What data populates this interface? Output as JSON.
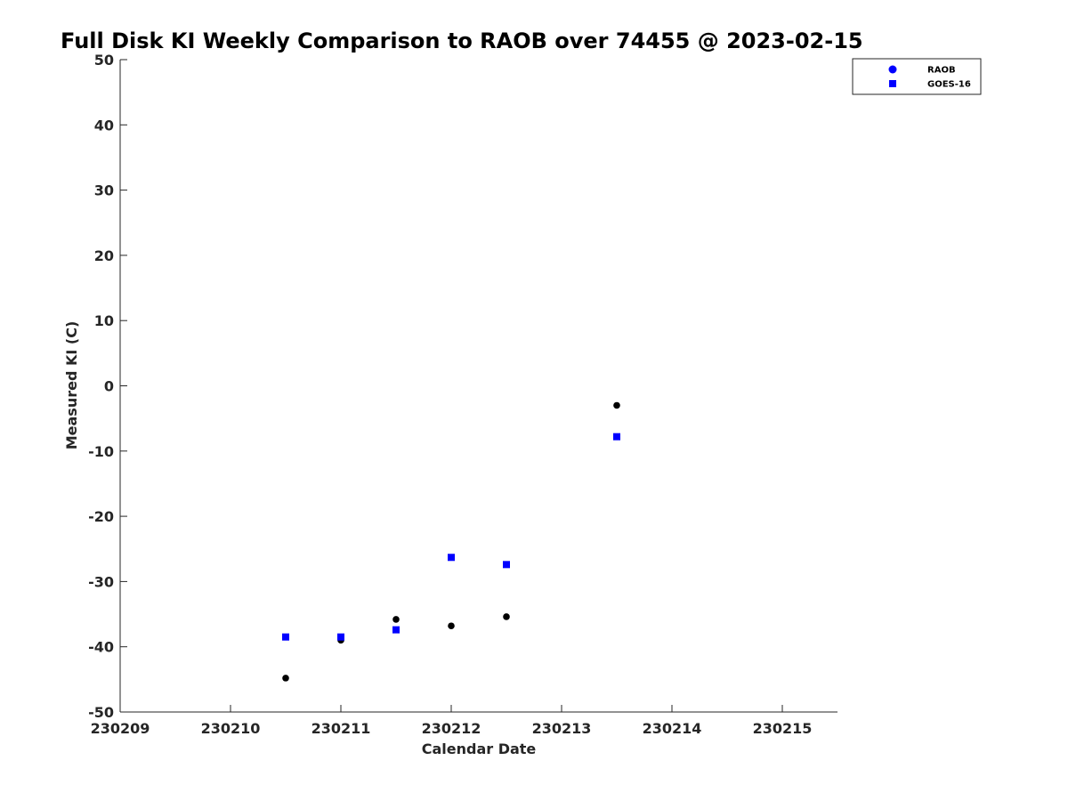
{
  "chart_data": {
    "type": "scatter",
    "title": "Full Disk KI Weekly Comparison to RAOB over 74455 @ 2023-02-15",
    "xlabel": "Calendar Date",
    "ylabel": "Measured KI (C)",
    "xlim": [
      230209,
      230215.5
    ],
    "ylim": [
      -50,
      50
    ],
    "xticks": [
      230209,
      230210,
      230211,
      230212,
      230213,
      230214,
      230215
    ],
    "xtick_labels": [
      "230209",
      "230210",
      "230211",
      "230212",
      "230213",
      "230214",
      "230215"
    ],
    "yticks": [
      50,
      40,
      30,
      20,
      10,
      0,
      -10,
      -20,
      -30,
      -40,
      -50
    ],
    "ytick_labels": [
      "50",
      "40",
      "30",
      "20",
      "10",
      "0",
      "-10",
      "-20",
      "-30",
      "-40",
      "-50"
    ],
    "grid": false,
    "legend_position": "top-right",
    "series": [
      {
        "name": "RAOB",
        "marker": "circle",
        "color": "#000000",
        "legend_color": "#0000ff",
        "x": [
          230210.5,
          230211,
          230211.5,
          230212,
          230212.5,
          230213.5
        ],
        "y": [
          -44.8,
          -39.0,
          -35.8,
          -36.8,
          -35.4,
          -3.0
        ]
      },
      {
        "name": "GOES-16",
        "marker": "square",
        "color": "#0000ff",
        "legend_color": "#0000ff",
        "x": [
          230210.5,
          230211,
          230211.5,
          230212,
          230212.5,
          230213.5
        ],
        "y": [
          -38.5,
          -38.5,
          -37.4,
          -26.3,
          -27.4,
          -7.8
        ]
      }
    ]
  }
}
